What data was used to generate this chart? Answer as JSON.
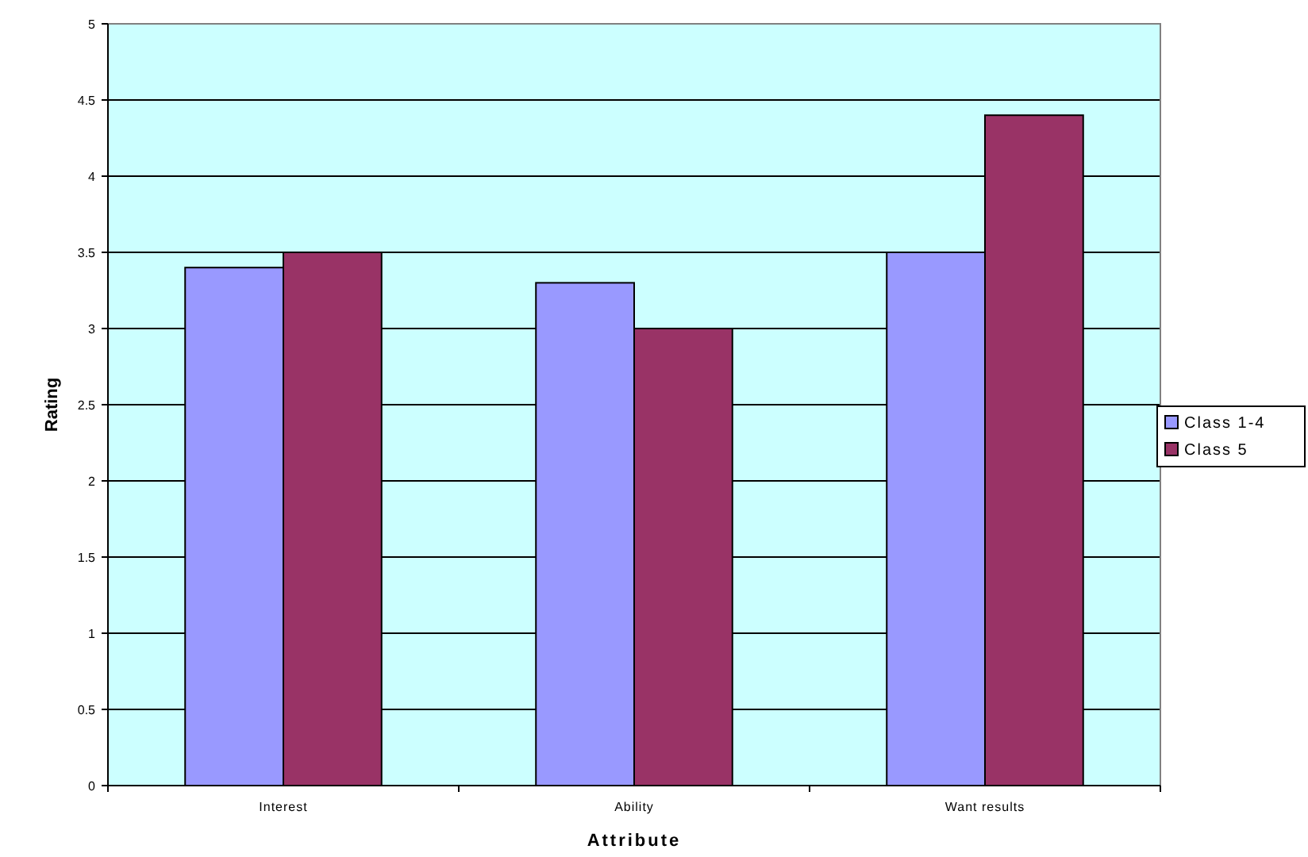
{
  "chart_data": {
    "type": "bar",
    "xlabel": "Attribute",
    "ylabel": "Rating",
    "categories": [
      "Interest",
      "Ability",
      "Want results"
    ],
    "series": [
      {
        "name": "Class 1-4",
        "color": "#9999ff",
        "values": [
          3.4,
          3.3,
          3.5
        ]
      },
      {
        "name": "Class 5",
        "color": "#993366",
        "values": [
          3.5,
          3.0,
          4.4
        ]
      }
    ],
    "ylim": [
      0,
      5
    ],
    "yticks": [
      0,
      0.5,
      1,
      1.5,
      2,
      2.5,
      3,
      3.5,
      4,
      4.5,
      5
    ],
    "grid": "y",
    "legend": "right"
  }
}
